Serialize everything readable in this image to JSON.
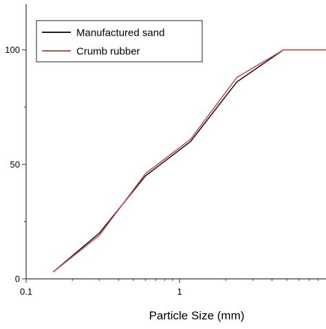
{
  "chart_data": {
    "type": "line",
    "title": "",
    "xlabel": "Particle Size (mm)",
    "ylabel": "",
    "x_scale": "log",
    "xlim": [
      0.1,
      9.0
    ],
    "ylim": [
      0,
      120
    ],
    "x_ticks": [
      {
        "value": 0.1,
        "label": "0.1"
      },
      {
        "value": 1,
        "label": "1"
      }
    ],
    "y_ticks": [
      {
        "value": 0,
        "label": "0"
      },
      {
        "value": 50,
        "label": "50"
      },
      {
        "value": 100,
        "label": "100"
      }
    ],
    "grid": false,
    "legend_position": "top-left",
    "series": [
      {
        "name": "Manufactured sand",
        "color": "#1a1a1a",
        "points": [
          {
            "x": 0.15,
            "y": 3
          },
          {
            "x": 0.3,
            "y": 20
          },
          {
            "x": 0.6,
            "y": 45
          },
          {
            "x": 1.18,
            "y": 60
          },
          {
            "x": 2.36,
            "y": 86
          },
          {
            "x": 4.75,
            "y": 100
          },
          {
            "x": 9.0,
            "y": 100
          }
        ]
      },
      {
        "name": "Crumb rubber",
        "color": "#c0504d",
        "points": [
          {
            "x": 0.15,
            "y": 3
          },
          {
            "x": 0.3,
            "y": 19
          },
          {
            "x": 0.6,
            "y": 46
          },
          {
            "x": 1.18,
            "y": 61
          },
          {
            "x": 2.36,
            "y": 88
          },
          {
            "x": 4.75,
            "y": 100
          },
          {
            "x": 9.0,
            "y": 100
          }
        ]
      }
    ]
  }
}
